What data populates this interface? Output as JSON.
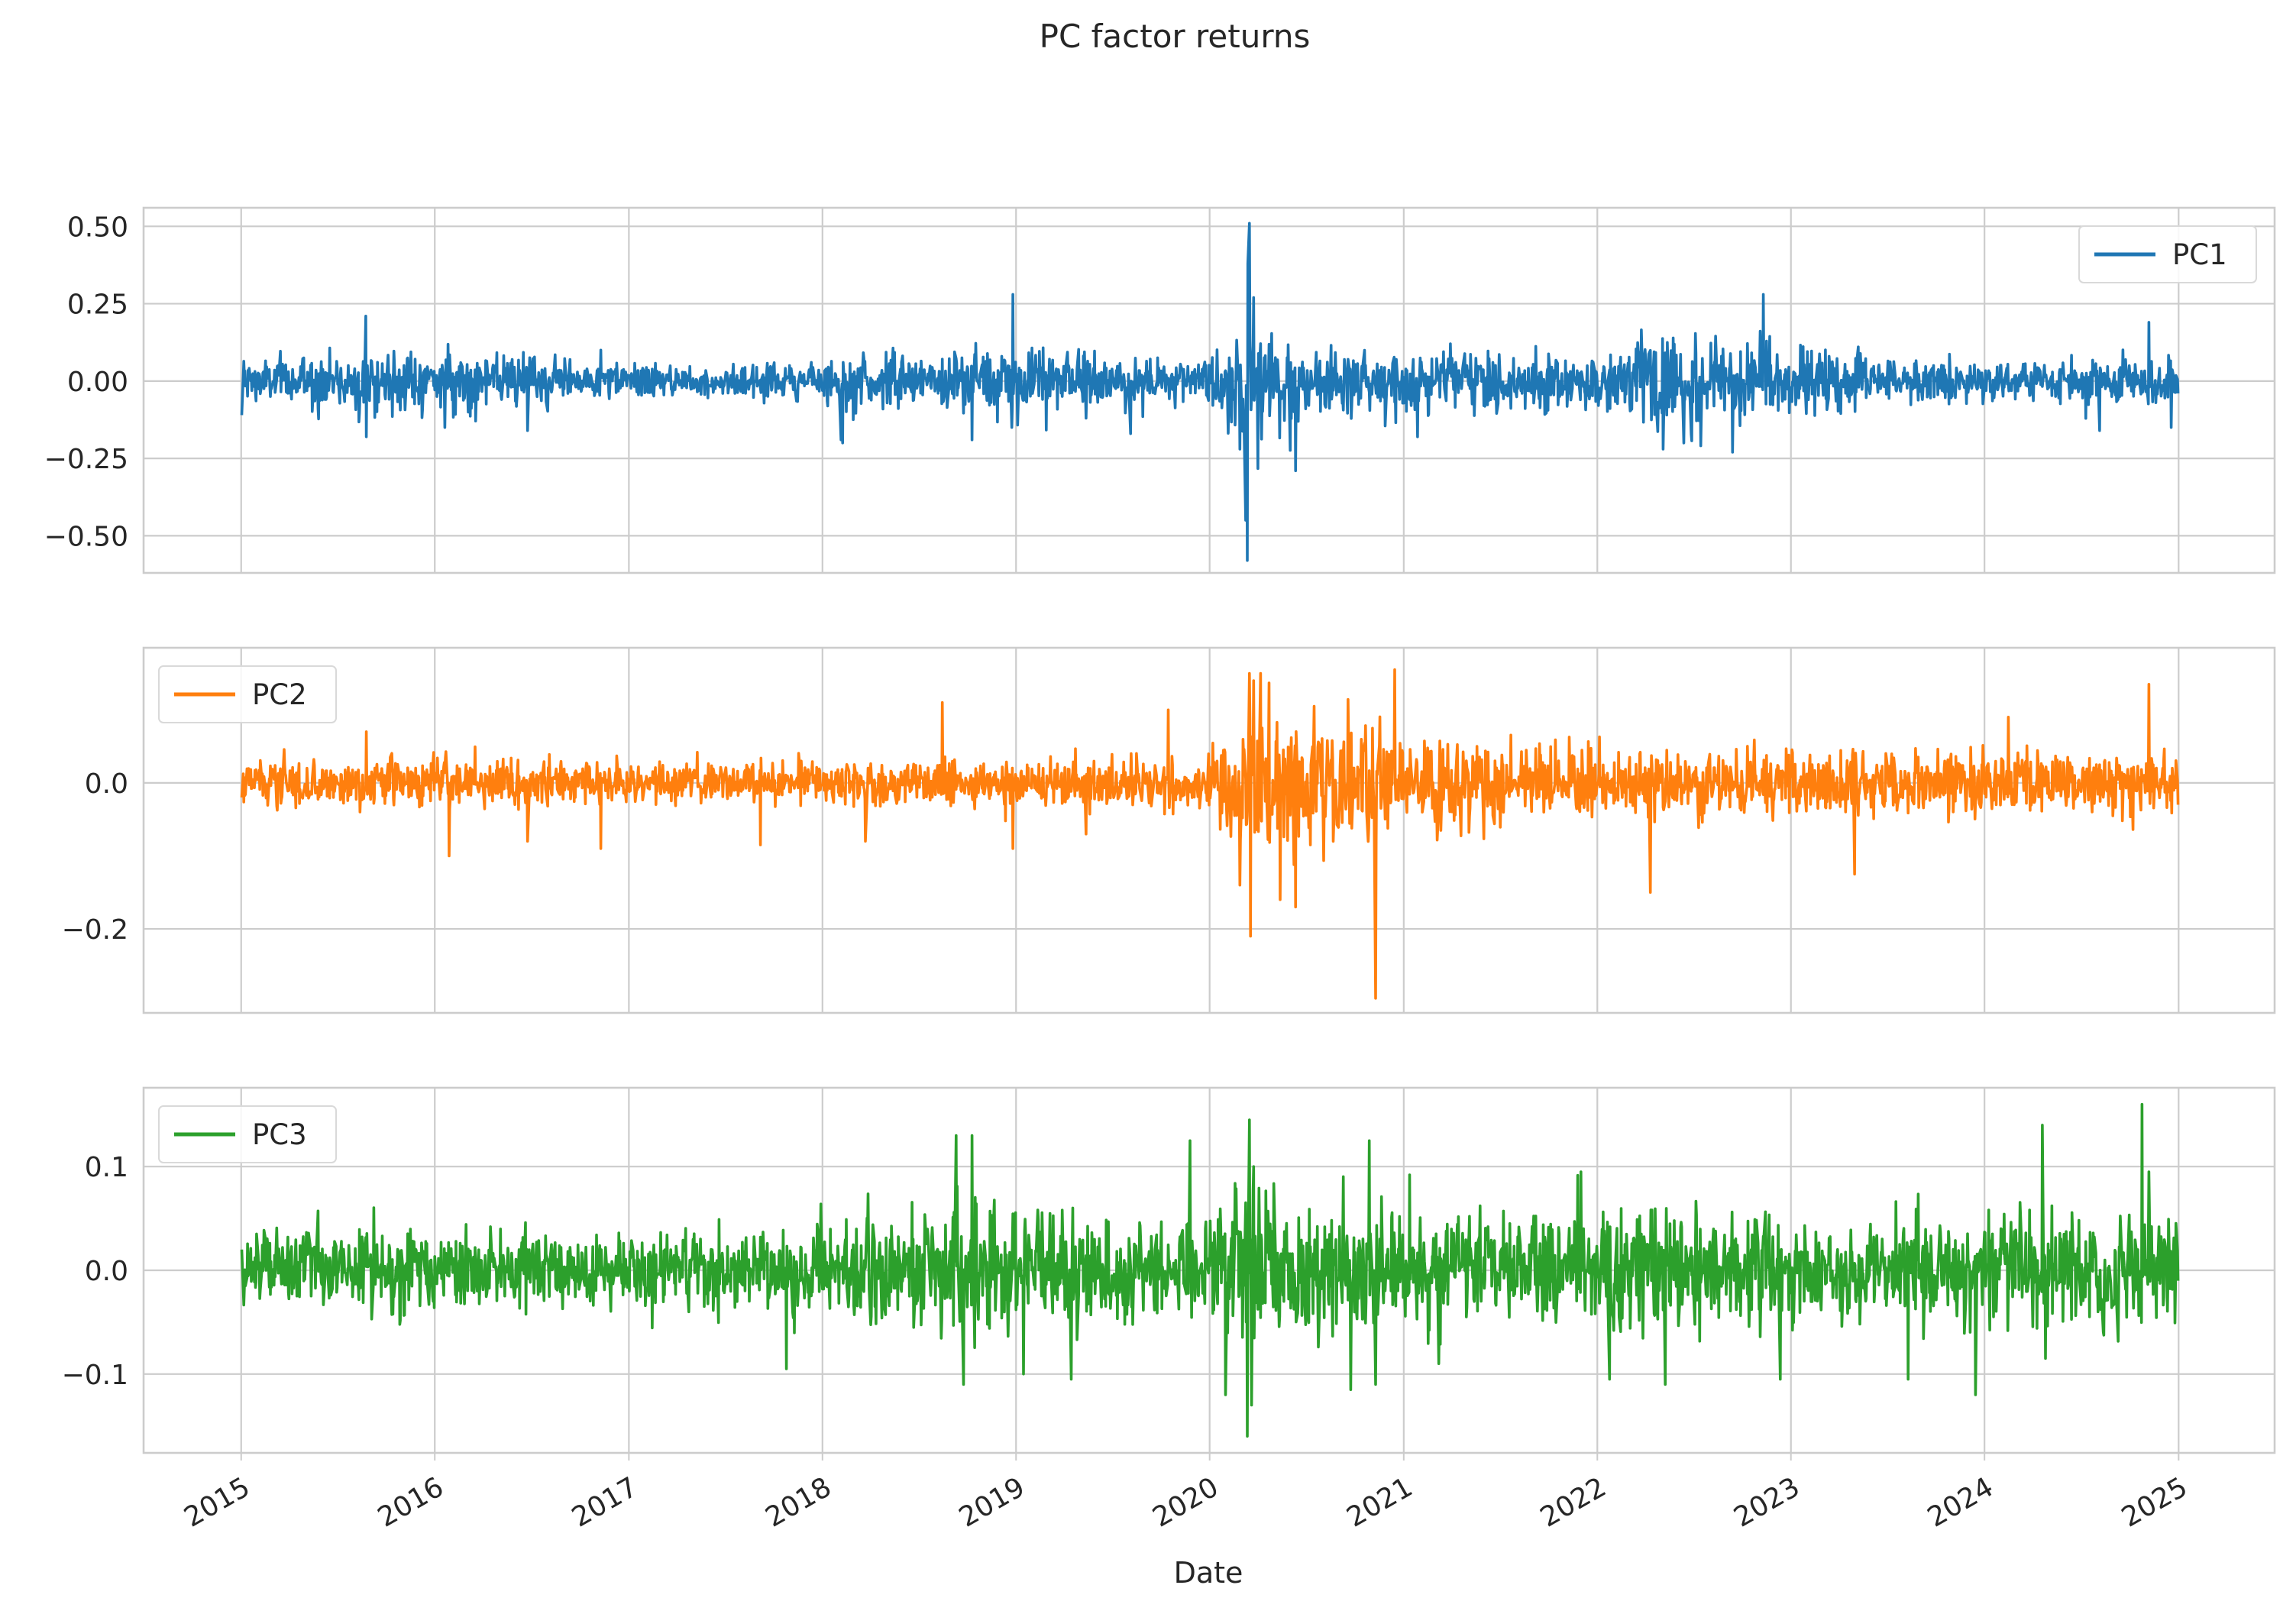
{
  "figure": {
    "title": "PC factor returns",
    "xlabel": "Date",
    "x_tick_labels": [
      "2015",
      "2016",
      "2017",
      "2018",
      "2019",
      "2020",
      "2021",
      "2022",
      "2023",
      "2024",
      "2025"
    ],
    "x_range": [
      "2014-07-01",
      "2025-07-01"
    ],
    "grid": true,
    "shared_x": true
  },
  "chart_data": [
    {
      "type": "line",
      "series": [
        {
          "name": "PC1",
          "color": "#1f77b4"
        }
      ],
      "legend_position": "top-right",
      "ylim": [
        -0.62,
        0.56
      ],
      "y_ticks": [
        -0.5,
        -0.25,
        0.0,
        0.25,
        0.5
      ],
      "y_tick_labels": [
        "−0.50",
        "−0.25",
        "0.00",
        "0.25",
        "0.50"
      ],
      "x": [
        "2015-01-02",
        "2015-08-24",
        "2015-08-25",
        "2016-01-20",
        "2016-06-24",
        "2016-11-09",
        "2018-02-05",
        "2018-02-08",
        "2018-10-10",
        "2018-12-24",
        "2018-12-26",
        "2019-05-13",
        "2019-08-05",
        "2020-02-27",
        "2020-03-09",
        "2020-03-12",
        "2020-03-13",
        "2020-03-16",
        "2020-03-24",
        "2020-06-11",
        "2021-01-27",
        "2022-05-05",
        "2022-06-13",
        "2022-09-13",
        "2022-11-10",
        "2024-08-05",
        "2024-11-06",
        "2024-12-18",
        "2024-12-31"
      ],
      "values": [
        -0.11,
        0.21,
        -0.18,
        -0.15,
        -0.16,
        0.1,
        -0.19,
        -0.2,
        -0.19,
        -0.15,
        0.28,
        -0.12,
        -0.17,
        -0.22,
        -0.45,
        -0.58,
        0.38,
        0.51,
        0.27,
        -0.29,
        -0.18,
        -0.22,
        -0.2,
        -0.23,
        0.28,
        -0.16,
        0.19,
        -0.15,
        -0.04
      ],
      "background_volatility": [
        {
          "x": "2015-01-01",
          "sd": 0.034
        },
        {
          "x": "2015-08-15",
          "sd": 0.05
        },
        {
          "x": "2016-03-01",
          "sd": 0.042
        },
        {
          "x": "2017-01-01",
          "sd": 0.026
        },
        {
          "x": "2017-12-15",
          "sd": 0.028
        },
        {
          "x": "2018-03-01",
          "sd": 0.048
        },
        {
          "x": "2018-08-01",
          "sd": 0.035
        },
        {
          "x": "2018-12-01",
          "sd": 0.062
        },
        {
          "x": "2019-06-01",
          "sd": 0.045
        },
        {
          "x": "2019-12-15",
          "sd": 0.03
        },
        {
          "x": "2020-03-01",
          "sd": 0.11
        },
        {
          "x": "2020-06-01",
          "sd": 0.07
        },
        {
          "x": "2020-12-01",
          "sd": 0.045
        },
        {
          "x": "2021-12-15",
          "sd": 0.045
        },
        {
          "x": "2022-05-01",
          "sd": 0.075
        },
        {
          "x": "2022-12-01",
          "sd": 0.06
        },
        {
          "x": "2023-06-01",
          "sd": 0.04
        },
        {
          "x": "2024-03-01",
          "sd": 0.032
        },
        {
          "x": "2024-09-01",
          "sd": 0.04
        },
        {
          "x": "2024-12-31",
          "sd": 0.035
        }
      ]
    },
    {
      "type": "line",
      "series": [
        {
          "name": "PC2",
          "color": "#ff7f0e"
        }
      ],
      "legend_position": "top-left",
      "ylim": [
        -0.315,
        0.185
      ],
      "y_ticks": [
        -0.2,
        0.0
      ],
      "y_tick_labels": [
        "−0.2",
        "0.0"
      ],
      "x": [
        "2015-01-02",
        "2015-08-25",
        "2016-01-28",
        "2016-06-24",
        "2016-11-09",
        "2017-09-06",
        "2018-03-23",
        "2018-08-15",
        "2018-12-26",
        "2019-05-13",
        "2019-10-15",
        "2020-02-27",
        "2020-03-16",
        "2020-03-18",
        "2020-03-24",
        "2020-04-06",
        "2020-05-13",
        "2020-06-11",
        "2020-11-09",
        "2020-12-15",
        "2022-04-11",
        "2023-05-01",
        "2024-02-15",
        "2024-11-06",
        "2024-12-31"
      ],
      "values": [
        -0.02,
        0.07,
        -0.1,
        -0.08,
        -0.09,
        -0.085,
        -0.08,
        0.11,
        -0.09,
        -0.07,
        0.1,
        -0.14,
        0.15,
        -0.21,
        0.14,
        0.15,
        -0.16,
        -0.17,
        -0.295,
        0.155,
        -0.15,
        -0.125,
        0.09,
        0.135,
        -0.03
      ],
      "background_volatility": [
        {
          "x": "2015-01-01",
          "sd": 0.014
        },
        {
          "x": "2016-01-01",
          "sd": 0.017
        },
        {
          "x": "2017-01-01",
          "sd": 0.013
        },
        {
          "x": "2018-01-01",
          "sd": 0.016
        },
        {
          "x": "2019-01-01",
          "sd": 0.017
        },
        {
          "x": "2019-12-15",
          "sd": 0.015
        },
        {
          "x": "2020-03-01",
          "sd": 0.05
        },
        {
          "x": "2020-07-01",
          "sd": 0.045
        },
        {
          "x": "2021-01-01",
          "sd": 0.03
        },
        {
          "x": "2022-01-01",
          "sd": 0.025
        },
        {
          "x": "2023-01-01",
          "sd": 0.022
        },
        {
          "x": "2024-06-01",
          "sd": 0.02
        },
        {
          "x": "2024-12-31",
          "sd": 0.02
        }
      ]
    },
    {
      "type": "line",
      "series": [
        {
          "name": "PC3",
          "color": "#2ca02c"
        }
      ],
      "legend_position": "top-left",
      "ylim": [
        -0.176,
        0.176
      ],
      "y_ticks": [
        -0.1,
        0.0,
        0.1
      ],
      "y_tick_labels": [
        "−0.1",
        "0.0",
        "0.1"
      ],
      "x": [
        "2015-01-02",
        "2017-10-25",
        "2018-09-10",
        "2018-09-24",
        "2018-10-10",
        "2019-01-15",
        "2019-04-15",
        "2019-11-25",
        "2020-01-31",
        "2020-03-12",
        "2020-03-16",
        "2020-03-20",
        "2020-03-24",
        "2020-09-23",
        "2020-10-28",
        "2020-11-09",
        "2021-03-08",
        "2021-12-01",
        "2022-01-24",
        "2022-05-09",
        "2022-12-12",
        "2023-08-10",
        "2023-12-15",
        "2024-04-19",
        "2024-04-25",
        "2024-10-24",
        "2024-11-06",
        "2024-12-31"
      ],
      "values": [
        0.02,
        -0.095,
        0.13,
        -0.11,
        0.13,
        -0.1,
        -0.105,
        0.125,
        -0.12,
        -0.16,
        0.145,
        -0.13,
        0.1,
        -0.115,
        0.125,
        -0.11,
        -0.09,
        0.095,
        -0.105,
        -0.11,
        -0.105,
        -0.105,
        -0.12,
        0.14,
        -0.085,
        0.16,
        0.095,
        -0.01
      ],
      "background_volatility": [
        {
          "x": "2015-01-01",
          "sd": 0.019
        },
        {
          "x": "2016-01-01",
          "sd": 0.02
        },
        {
          "x": "2017-01-01",
          "sd": 0.017
        },
        {
          "x": "2018-01-01",
          "sd": 0.02
        },
        {
          "x": "2018-08-01",
          "sd": 0.03
        },
        {
          "x": "2019-01-01",
          "sd": 0.028
        },
        {
          "x": "2019-12-15",
          "sd": 0.022
        },
        {
          "x": "2020-03-01",
          "sd": 0.04
        },
        {
          "x": "2020-08-01",
          "sd": 0.032
        },
        {
          "x": "2021-06-01",
          "sd": 0.026
        },
        {
          "x": "2022-03-01",
          "sd": 0.03
        },
        {
          "x": "2023-06-01",
          "sd": 0.024
        },
        {
          "x": "2024-06-01",
          "sd": 0.026
        },
        {
          "x": "2024-12-31",
          "sd": 0.026
        }
      ]
    }
  ]
}
